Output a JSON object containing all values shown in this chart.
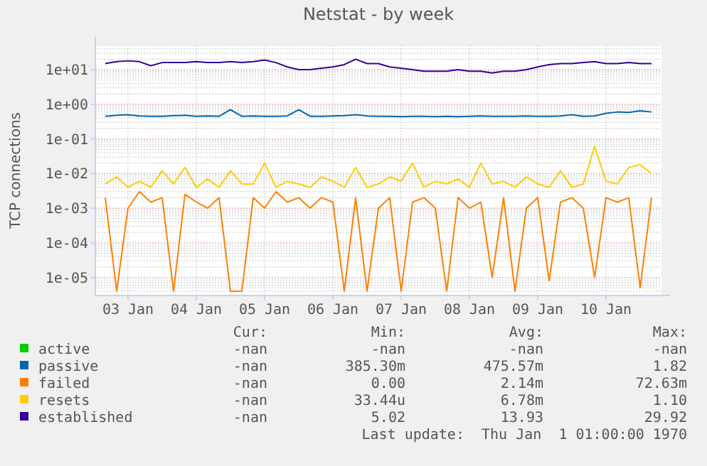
{
  "chart_data": {
    "type": "line",
    "title": "Netstat - by week",
    "ylabel": "TCP connections",
    "log": "y",
    "grid": true,
    "legend": "bottom",
    "ylim": [
      3e-06,
      50
    ],
    "yticks": [
      {
        "value": 1e-05,
        "label": "1e-05"
      },
      {
        "value": 0.0001,
        "label": "1e-04"
      },
      {
        "value": 0.001,
        "label": "1e-03"
      },
      {
        "value": 0.01,
        "label": "1e-02"
      },
      {
        "value": 0.1,
        "label": "1e-01"
      },
      {
        "value": 1,
        "label": "1e+00"
      },
      {
        "value": 10,
        "label": "1e+01"
      }
    ],
    "xlim": [
      "--01-03T00:30",
      "--01-11T07:30"
    ],
    "xticks": [
      {
        "value": "--01-03T12:00",
        "label": "03 Jan"
      },
      {
        "value": "--01-04T12:00",
        "label": "04 Jan"
      },
      {
        "value": "--01-05T12:00",
        "label": "05 Jan"
      },
      {
        "value": "--01-06T12:00",
        "label": "06 Jan"
      },
      {
        "value": "--01-07T12:00",
        "label": "07 Jan"
      },
      {
        "value": "--01-08T12:00",
        "label": "08 Jan"
      },
      {
        "value": "--01-09T12:00",
        "label": "09 Jan"
      },
      {
        "value": "--01-10T12:00",
        "label": "10 Jan"
      }
    ],
    "x": [
      "--01-03T04:00",
      "--01-03T08:00",
      "--01-03T12:00",
      "--01-03T16:00",
      "--01-03T20:00",
      "--01-04T00:00",
      "--01-04T04:00",
      "--01-04T08:00",
      "--01-04T12:00",
      "--01-04T16:00",
      "--01-04T20:00",
      "--01-05T00:00",
      "--01-05T04:00",
      "--01-05T08:00",
      "--01-05T12:00",
      "--01-05T16:00",
      "--01-05T20:00",
      "--01-06T00:00",
      "--01-06T04:00",
      "--01-06T08:00",
      "--01-06T12:00",
      "--01-06T16:00",
      "--01-06T20:00",
      "--01-07T00:00",
      "--01-07T04:00",
      "--01-07T08:00",
      "--01-07T12:00",
      "--01-07T16:00",
      "--01-07T20:00",
      "--01-08T00:00",
      "--01-08T04:00",
      "--01-08T08:00",
      "--01-08T12:00",
      "--01-08T16:00",
      "--01-08T20:00",
      "--01-09T00:00",
      "--01-09T04:00",
      "--01-09T08:00",
      "--01-09T12:00",
      "--01-09T16:00",
      "--01-09T20:00",
      "--01-10T00:00",
      "--01-10T04:00",
      "--01-10T08:00",
      "--01-10T12:00",
      "--01-10T16:00",
      "--01-10T20:00",
      "--01-11T00:00",
      "--01-11T04:00"
    ],
    "series": [
      {
        "name": "active",
        "color": "#00cc00",
        "values": [
          null,
          null,
          null,
          null,
          null,
          null,
          null,
          null,
          null,
          null,
          null,
          null,
          null,
          null,
          null,
          null,
          null,
          null,
          null,
          null,
          null,
          null,
          null,
          null,
          null,
          null,
          null,
          null,
          null,
          null,
          null,
          null,
          null,
          null,
          null,
          null,
          null,
          null,
          null,
          null,
          null,
          null,
          null,
          null,
          null,
          null,
          null,
          null,
          null
        ]
      },
      {
        "name": "passive",
        "color": "#0066b3",
        "values": [
          0.45,
          0.48,
          0.5,
          0.46,
          0.45,
          0.45,
          0.47,
          0.48,
          0.45,
          0.46,
          0.45,
          0.7,
          0.45,
          0.46,
          0.45,
          0.45,
          0.46,
          0.7,
          0.45,
          0.45,
          0.46,
          0.47,
          0.5,
          0.46,
          0.45,
          0.45,
          0.44,
          0.45,
          0.45,
          0.44,
          0.45,
          0.44,
          0.45,
          0.46,
          0.45,
          0.45,
          0.45,
          0.46,
          0.45,
          0.45,
          0.46,
          0.5,
          0.45,
          0.46,
          0.55,
          0.6,
          0.58,
          0.65,
          0.6
        ]
      },
      {
        "name": "failed",
        "color": "#ff8000",
        "values": [
          0.002,
          4e-06,
          0.001,
          0.003,
          0.0015,
          0.002,
          4e-06,
          0.0025,
          0.0015,
          0.001,
          0.002,
          4e-06,
          4e-06,
          0.002,
          0.001,
          0.003,
          0.0015,
          0.002,
          0.001,
          0.002,
          0.0015,
          4e-06,
          0.002,
          4e-06,
          0.001,
          0.002,
          4e-06,
          0.0015,
          0.002,
          0.001,
          4e-06,
          0.002,
          0.001,
          0.0015,
          1e-05,
          0.002,
          4e-06,
          0.001,
          0.002,
          8e-06,
          0.0015,
          0.002,
          0.001,
          1e-05,
          0.002,
          0.0015,
          0.002,
          5e-06,
          0.002
        ]
      },
      {
        "name": "resets",
        "color": "#ffcc00",
        "values": [
          0.005,
          0.008,
          0.004,
          0.006,
          0.004,
          0.012,
          0.005,
          0.015,
          0.004,
          0.007,
          0.004,
          0.012,
          0.005,
          0.005,
          0.02,
          0.004,
          0.006,
          0.005,
          0.004,
          0.008,
          0.006,
          0.004,
          0.015,
          0.004,
          0.005,
          0.008,
          0.006,
          0.02,
          0.004,
          0.006,
          0.005,
          0.007,
          0.004,
          0.02,
          0.005,
          0.006,
          0.004,
          0.008,
          0.005,
          0.004,
          0.012,
          0.004,
          0.005,
          0.06,
          0.006,
          0.005,
          0.015,
          0.018,
          0.01
        ]
      },
      {
        "name": "established",
        "color": "#330099",
        "values": [
          15,
          17,
          18,
          17,
          13,
          16,
          16,
          16,
          17,
          16,
          16,
          17,
          16,
          17,
          19,
          16,
          12,
          10,
          10,
          11,
          12,
          14,
          20,
          15,
          15,
          12,
          11,
          10,
          9,
          9,
          9,
          10,
          9,
          9,
          8,
          9,
          9,
          10,
          12,
          14,
          15,
          15,
          16,
          17,
          15,
          15,
          16,
          15,
          15
        ]
      }
    ],
    "annotations": [
      "Cur:",
      "Min:",
      "Avg:",
      "Max:",
      "-nan",
      "-nan",
      "-nan",
      "-nan",
      "-nan",
      "385.30m",
      "475.57m",
      "1.82",
      "-nan",
      "0.00",
      "2.14m",
      "72.63m",
      "-nan",
      "33.44u",
      "6.78m",
      "1.10",
      "-nan",
      "5.02",
      "13.93",
      "29.92",
      "Last update:  Thu Jan  1 01:00:00 1970"
    ]
  }
}
